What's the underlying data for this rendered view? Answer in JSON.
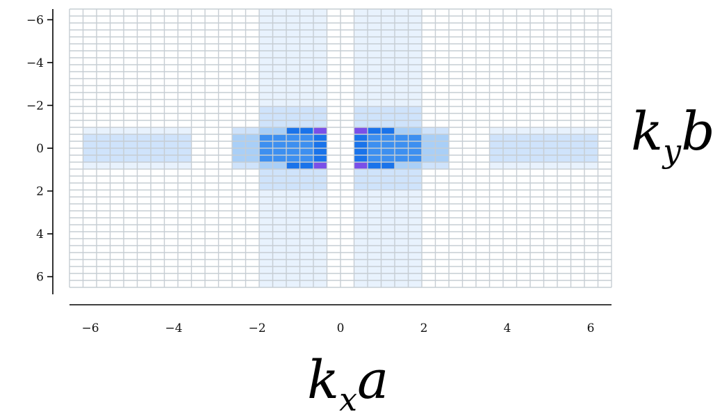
{
  "chart_data": {
    "type": "heatmap",
    "title": "",
    "xlabel_parts": [
      "k",
      "x",
      "a"
    ],
    "ylabel_parts": [
      "k",
      "y",
      "b"
    ],
    "xlim": [
      -6.5,
      6.5
    ],
    "ylim": [
      -6.5,
      6.5
    ],
    "y_inverted": true,
    "grid": true,
    "x_ticks": [
      -6,
      -4,
      -2,
      0,
      2,
      4,
      6
    ],
    "y_ticks": [
      -6,
      -4,
      -2,
      0,
      2,
      4,
      6
    ],
    "x_tick_labels": [
      "−6",
      "−4",
      "−2",
      "0",
      "2",
      "4",
      "6"
    ],
    "y_tick_labels": [
      "−6",
      "−4",
      "−2",
      "0",
      "2",
      "4",
      "6"
    ],
    "n_cols": 40,
    "n_rows": 40,
    "color_scale": [
      "#ffffff",
      "#e8f2fd",
      "#cfe3fb",
      "#a9cff7",
      "#7bb4f2",
      "#3d8ff0",
      "#1a73ea",
      "#7a4fe8"
    ],
    "nonzero_cells": {
      "x_bins": [
        [
          -6.2,
          -3.6
        ],
        [
          -2.6,
          -2.0
        ],
        [
          -2.0,
          -1.4
        ],
        [
          -1.4,
          -0.8
        ],
        [
          -0.8,
          -0.3
        ],
        [
          0.3,
          0.8
        ],
        [
          0.8,
          1.4
        ],
        [
          1.4,
          2.0
        ],
        [
          2.0,
          2.6
        ],
        [
          3.6,
          6.2
        ]
      ],
      "y_bins": [
        [
          -6.5,
          -2.0
        ],
        [
          -2.0,
          -1.0
        ],
        [
          -1.0,
          -0.5
        ],
        [
          -0.5,
          0.0
        ],
        [
          0.0,
          0.5
        ],
        [
          0.5,
          1.0
        ],
        [
          1.0,
          2.0
        ],
        [
          2.0,
          6.5
        ]
      ],
      "levels": [
        [
          0,
          0,
          1,
          1,
          1,
          1,
          1,
          1,
          0,
          0
        ],
        [
          0,
          0,
          2,
          2,
          2,
          2,
          2,
          2,
          0,
          0
        ],
        [
          1,
          2,
          3,
          6,
          7,
          7,
          6,
          3,
          2,
          1
        ],
        [
          2,
          3,
          5,
          5,
          6,
          6,
          5,
          5,
          3,
          2
        ],
        [
          2,
          3,
          5,
          5,
          6,
          6,
          5,
          5,
          3,
          2
        ],
        [
          1,
          2,
          3,
          6,
          7,
          7,
          6,
          3,
          2,
          1
        ],
        [
          0,
          0,
          2,
          2,
          2,
          2,
          2,
          2,
          0,
          0
        ],
        [
          0,
          0,
          1,
          1,
          1,
          1,
          1,
          1,
          0,
          0
        ]
      ]
    }
  }
}
